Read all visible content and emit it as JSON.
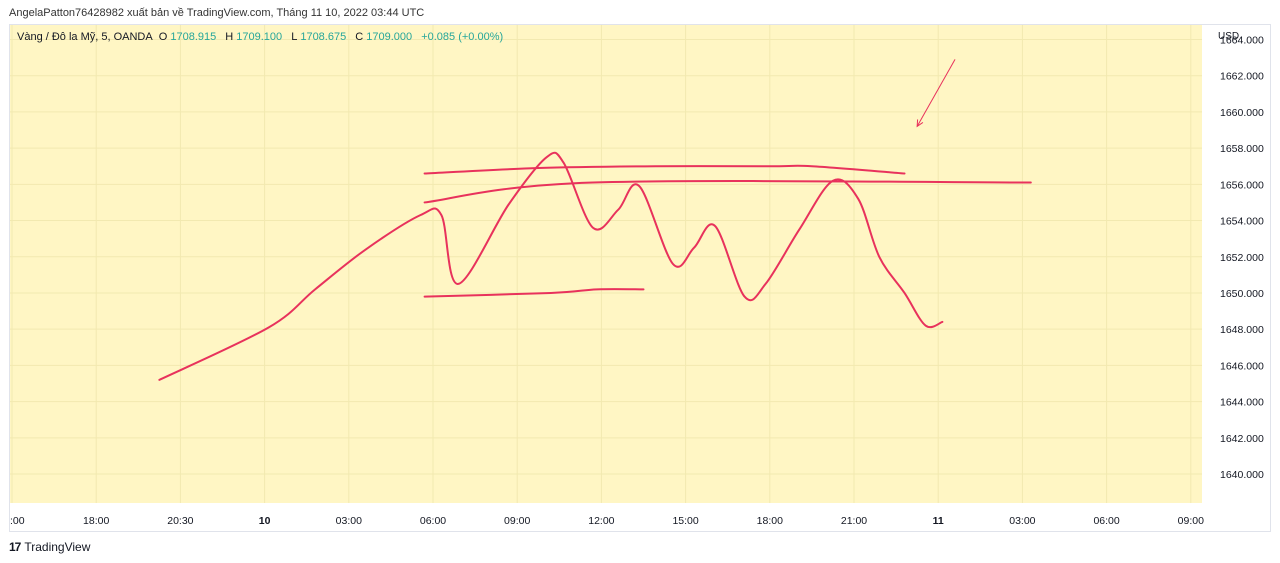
{
  "attribution": "AngelaPatton76428982 xuất bản về TradingView.com, Tháng 11 10, 2022 03:44 UTC",
  "legend": {
    "symbol": "Vàng / Đô la Mỹ, 5, OANDA",
    "open_label": "O",
    "open": "1708.915",
    "high_label": "H",
    "high": "1709.100",
    "low_label": "L",
    "low": "1708.675",
    "close_label": "C",
    "close": "1709.000",
    "change": "+0.085 (+0.00%)"
  },
  "footer": {
    "logo_mark": "17",
    "brand": "TradingView"
  },
  "colors": {
    "plot_bg": "#fff6c4",
    "grid": "#f2e9b0",
    "axis_text": "#131722",
    "legend_value": "#26a69a",
    "drawing": "#e8325c"
  },
  "chart_data": {
    "type": "line",
    "title": "",
    "currency_label": "USD",
    "ylim": [
      1638.4,
      1664.8
    ],
    "y_ticks": [
      1640,
      1642,
      1644,
      1646,
      1648,
      1650,
      1652,
      1654,
      1656,
      1658,
      1660,
      1662,
      1664
    ],
    "y_tick_labels": [
      "1640.000",
      "1642.000",
      "1644.000",
      "1646.000",
      "1648.000",
      "1650.000",
      "1652.000",
      "1654.000",
      "1656.000",
      "1658.000",
      "1660.000",
      "1662.000",
      "1664.000"
    ],
    "x_ticks": [
      ":00",
      "18:00",
      "20:30",
      "10",
      "03:00",
      "06:00",
      "09:00",
      "12:00",
      "15:00",
      "18:00",
      "21:00",
      "11",
      "03:00",
      "06:00",
      "09:00"
    ],
    "x_tick_bold": [
      false,
      false,
      false,
      true,
      false,
      false,
      false,
      false,
      false,
      false,
      false,
      true,
      false,
      false,
      false
    ],
    "grid": true,
    "drawings": [
      {
        "name": "projected-path",
        "x": [
          1.75,
          3.05,
          3.6,
          4.2,
          4.85,
          5.1,
          5.3,
          5.9,
          6.35,
          6.55,
          6.9,
          7.2,
          7.45,
          7.85,
          8.1,
          8.35,
          8.7,
          8.95,
          9.35,
          9.75,
          10.05,
          10.3,
          10.6,
          10.85,
          11.05
        ],
        "y": [
          1645.2,
          1648.1,
          1650.2,
          1652.4,
          1654.3,
          1654.3,
          1650.5,
          1654.9,
          1657.5,
          1657.2,
          1653.6,
          1654.6,
          1655.9,
          1651.6,
          1652.5,
          1653.7,
          1649.8,
          1650.5,
          1653.5,
          1656.2,
          1655.2,
          1652.0,
          1650.0,
          1648.2,
          1648.4
        ]
      },
      {
        "name": "upper-curve",
        "x": [
          4.9,
          6.25,
          7.65,
          9.05,
          9.5,
          10.6
        ],
        "y": [
          1656.6,
          1656.9,
          1657.0,
          1657.0,
          1657.0,
          1656.6
        ]
      },
      {
        "name": "resistance-line",
        "x": [
          4.9,
          6.9,
          12.1
        ],
        "y": [
          1655.0,
          1656.1,
          1656.1
        ]
      },
      {
        "name": "support-line",
        "x": [
          4.9,
          6.4,
          6.95,
          7.5
        ],
        "y": [
          1649.8,
          1650.0,
          1650.2,
          1650.2
        ]
      },
      {
        "name": "arrow-line",
        "x": [
          11.2,
          10.75
        ],
        "y": [
          1662.9,
          1659.2
        ],
        "arrow": true
      }
    ]
  }
}
